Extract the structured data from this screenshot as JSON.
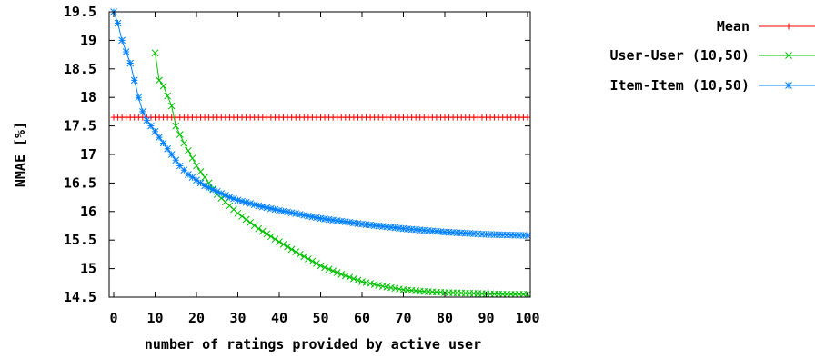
{
  "chart_data": {
    "type": "line",
    "xlabel": "number of ratings provided by active user",
    "ylabel": "NMAE [%]",
    "xlim": [
      0,
      100
    ],
    "ylim": [
      14.5,
      19.5
    ],
    "x_ticks": [
      "0",
      "10",
      "20",
      "30",
      "40",
      "50",
      "60",
      "70",
      "80",
      "90",
      "100"
    ],
    "y_ticks": [
      "14.5",
      "15",
      "15.5",
      "16",
      "16.5",
      "17",
      "17.5",
      "18",
      "18.5",
      "19",
      "19.5"
    ],
    "grid": false,
    "legend_position": "outside-right-top",
    "series": [
      {
        "name": "Mean",
        "color": "#ff0000",
        "marker": "plus",
        "x_range": [
          0,
          100
        ],
        "values": [
          [
            0,
            17.65
          ],
          [
            100,
            17.65
          ]
        ]
      },
      {
        "name": "User-User (10,50)",
        "color": "#00c000",
        "marker": "x",
        "x_range": [
          10,
          100
        ],
        "values": [
          [
            10,
            18.78
          ],
          [
            11,
            18.3
          ],
          [
            12,
            18.2
          ],
          [
            14,
            17.85
          ],
          [
            15,
            17.5
          ],
          [
            17,
            17.2
          ],
          [
            20,
            16.8
          ],
          [
            25,
            16.3
          ],
          [
            30,
            15.97
          ],
          [
            35,
            15.7
          ],
          [
            40,
            15.47
          ],
          [
            45,
            15.25
          ],
          [
            50,
            15.05
          ],
          [
            55,
            14.9
          ],
          [
            60,
            14.77
          ],
          [
            65,
            14.69
          ],
          [
            70,
            14.63
          ],
          [
            75,
            14.6
          ],
          [
            80,
            14.58
          ],
          [
            85,
            14.57
          ],
          [
            90,
            14.56
          ],
          [
            95,
            14.55
          ],
          [
            100,
            14.55
          ]
        ]
      },
      {
        "name": "Item-Item (10,50)",
        "color": "#0080ff",
        "marker": "star",
        "x_range": [
          0,
          100
        ],
        "values": [
          [
            0,
            19.5
          ],
          [
            1,
            19.3
          ],
          [
            2,
            19.0
          ],
          [
            3,
            18.8
          ],
          [
            4,
            18.6
          ],
          [
            5,
            18.3
          ],
          [
            6,
            18.0
          ],
          [
            7,
            17.75
          ],
          [
            8,
            17.6
          ],
          [
            10,
            17.4
          ],
          [
            12,
            17.2
          ],
          [
            14,
            17.0
          ],
          [
            16,
            16.8
          ],
          [
            18,
            16.65
          ],
          [
            20,
            16.55
          ],
          [
            22,
            16.45
          ],
          [
            25,
            16.35
          ],
          [
            28,
            16.25
          ],
          [
            30,
            16.2
          ],
          [
            35,
            16.1
          ],
          [
            40,
            16.02
          ],
          [
            45,
            15.95
          ],
          [
            50,
            15.88
          ],
          [
            55,
            15.83
          ],
          [
            60,
            15.78
          ],
          [
            65,
            15.74
          ],
          [
            70,
            15.7
          ],
          [
            75,
            15.67
          ],
          [
            80,
            15.64
          ],
          [
            85,
            15.62
          ],
          [
            90,
            15.6
          ],
          [
            95,
            15.59
          ],
          [
            100,
            15.58
          ]
        ]
      }
    ]
  }
}
